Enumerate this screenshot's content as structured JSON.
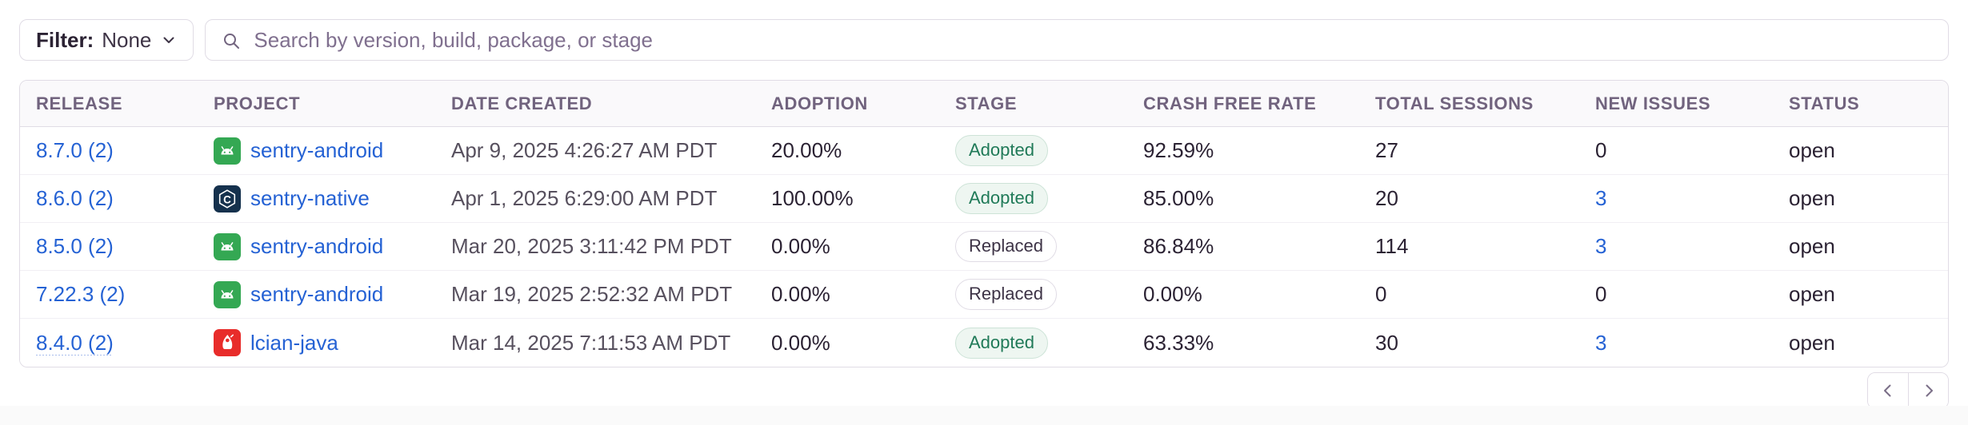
{
  "toolbar": {
    "filter_label": "Filter:",
    "filter_value": "None",
    "search_placeholder": "Search by version, build, package, or stage"
  },
  "table": {
    "columns": [
      "RELEASE",
      "PROJECT",
      "DATE CREATED",
      "ADOPTION",
      "STAGE",
      "CRASH FREE RATE",
      "TOTAL SESSIONS",
      "NEW ISSUES",
      "STATUS"
    ],
    "rows": [
      {
        "release": "8.7.0 (2)",
        "platform": "android",
        "project": "sentry-android",
        "date_created": "Apr 9, 2025 4:26:27 AM PDT",
        "adoption": "20.00%",
        "stage": "Adopted",
        "crash_free_rate": "92.59%",
        "total_sessions": "27",
        "new_issues": "0",
        "new_issues_link": false,
        "status": "open"
      },
      {
        "release": "8.6.0 (2)",
        "platform": "c",
        "project": "sentry-native",
        "date_created": "Apr 1, 2025 6:29:00 AM PDT",
        "adoption": "100.00%",
        "stage": "Adopted",
        "crash_free_rate": "85.00%",
        "total_sessions": "20",
        "new_issues": "3",
        "new_issues_link": true,
        "status": "open"
      },
      {
        "release": "8.5.0 (2)",
        "platform": "android",
        "project": "sentry-android",
        "date_created": "Mar 20, 2025 3:11:42 PM PDT",
        "adoption": "0.00%",
        "stage": "Replaced",
        "crash_free_rate": "86.84%",
        "total_sessions": "114",
        "new_issues": "3",
        "new_issues_link": true,
        "status": "open"
      },
      {
        "release": "7.22.3 (2)",
        "platform": "android",
        "project": "sentry-android",
        "date_created": "Mar 19, 2025 2:52:32 AM PDT",
        "adoption": "0.00%",
        "stage": "Replaced",
        "crash_free_rate": "0.00%",
        "total_sessions": "0",
        "new_issues": "0",
        "new_issues_link": false,
        "status": "open"
      },
      {
        "release": "8.4.0 (2)",
        "platform": "java",
        "project": "lcian-java",
        "date_created": "Mar 14, 2025 7:11:53 AM PDT",
        "adoption": "0.00%",
        "stage": "Adopted",
        "crash_free_rate": "63.33%",
        "total_sessions": "30",
        "new_issues": "3",
        "new_issues_link": true,
        "status": "open"
      }
    ]
  },
  "pagination": {
    "prev_icon": "chevron-left",
    "next_icon": "chevron-right"
  },
  "colors": {
    "link_blue": "#2562d4",
    "header_text": "#71637e",
    "body_text": "#2b2233",
    "date_text": "#57505e",
    "border": "#e0dce5",
    "header_bg": "#faf9fb",
    "adopted_badge_text": "#207a58",
    "adopted_badge_bg": "#eef6f1",
    "replaced_badge_text": "#3d3346",
    "android_icon_green": "#34a853",
    "c_icon_navy": "#15314d",
    "java_icon_red": "#e82c2a"
  }
}
